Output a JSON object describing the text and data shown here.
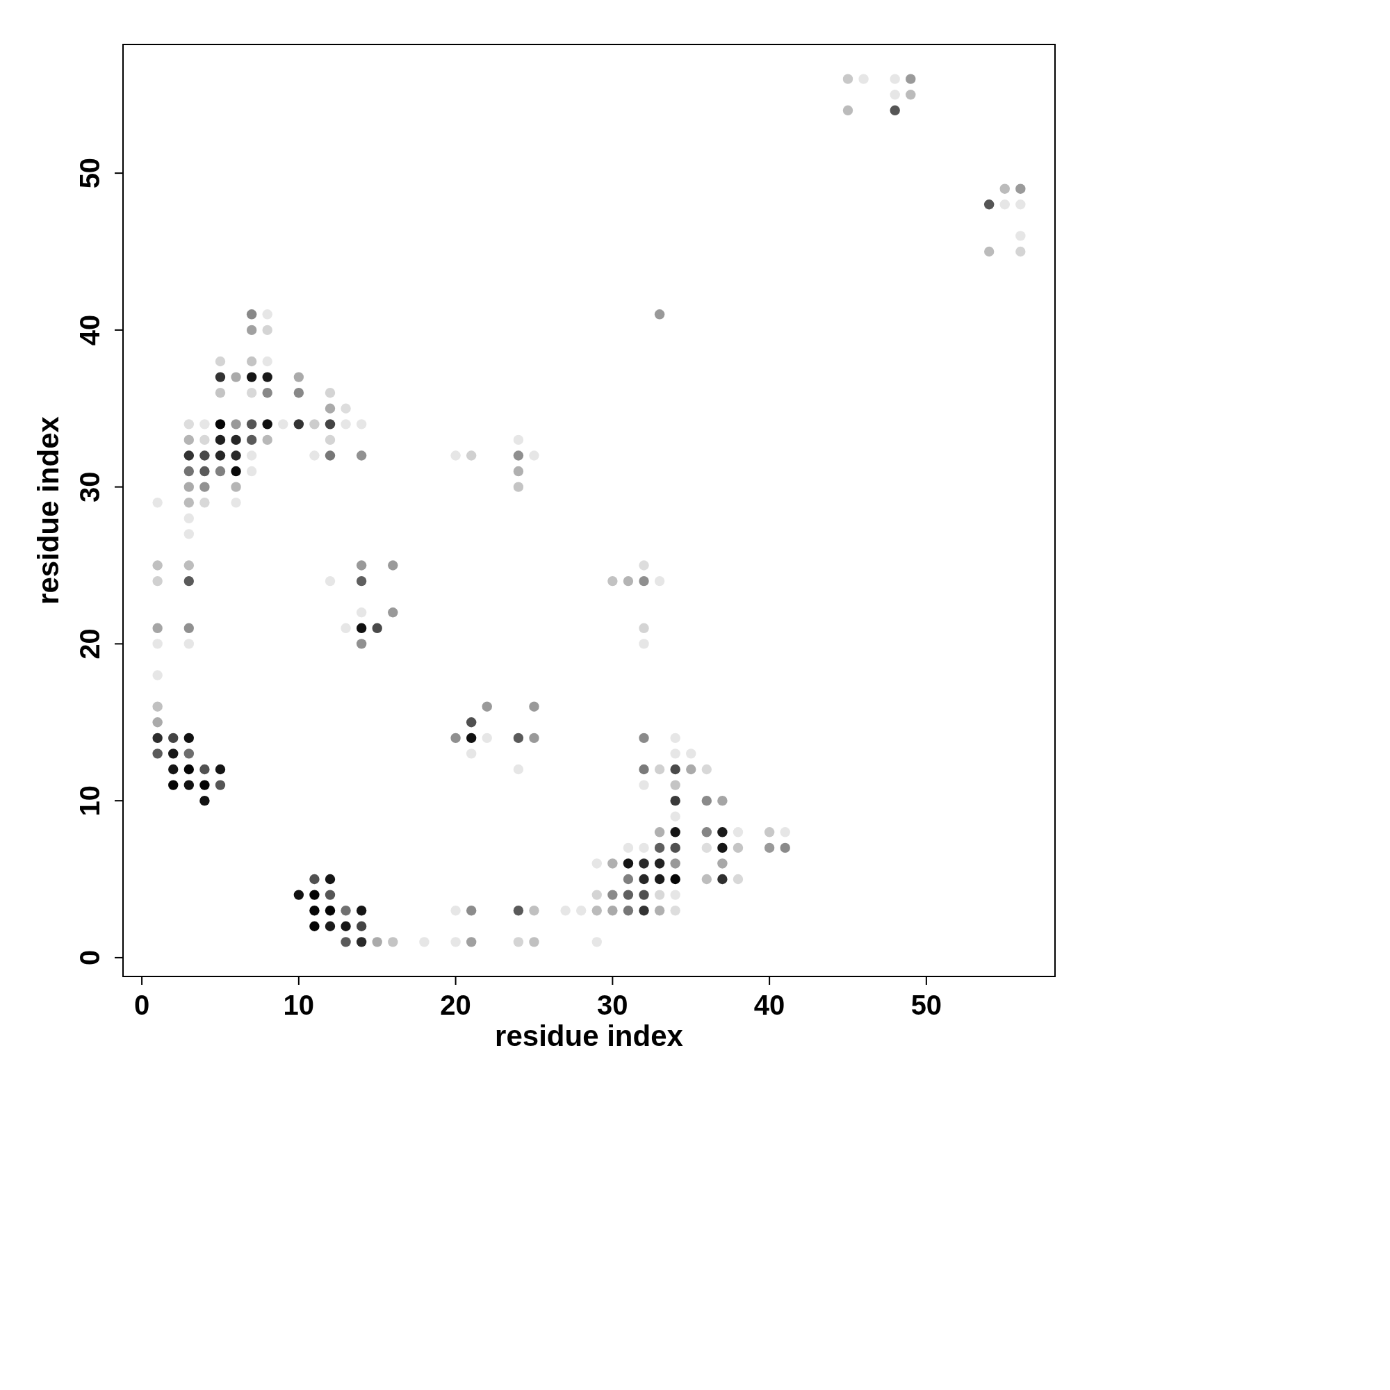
{
  "chart_data": {
    "type": "scatter",
    "xlabel": "residue index",
    "ylabel": "residue index",
    "marker": "circle",
    "xlim": [
      -1.2,
      58.2
    ],
    "ylim": [
      -1.2,
      58.2
    ],
    "xticks": [
      0,
      10,
      20,
      30,
      40,
      50
    ],
    "yticks": [
      0,
      10,
      20,
      30,
      40,
      50
    ],
    "series": [
      {
        "x": [
          45,
          46,
          48,
          49
        ],
        "values": [
          56,
          56,
          56,
          56
        ],
        "colors": [
          "#c8c8c8",
          "#e6e6e6",
          "#e6e6e6",
          "#9a9a9a"
        ]
      },
      {
        "x": [
          48,
          49
        ],
        "values": [
          55,
          55
        ],
        "colors": [
          "#e6e6e6",
          "#bbbbbb"
        ]
      },
      {
        "x": [
          45,
          48
        ],
        "values": [
          54,
          54
        ],
        "colors": [
          "#bbbbbb",
          "#555555"
        ]
      },
      {
        "x": [
          55,
          56
        ],
        "values": [
          49,
          49
        ],
        "colors": [
          "#bbbbbb",
          "#9a9a9a"
        ]
      },
      {
        "x": [
          54,
          55,
          56
        ],
        "values": [
          48,
          48,
          48
        ],
        "colors": [
          "#555555",
          "#e6e6e6",
          "#e6e6e6"
        ]
      },
      {
        "x": [
          56
        ],
        "values": [
          46
        ],
        "colors": [
          "#e6e6e6"
        ]
      },
      {
        "x": [
          54,
          56
        ],
        "values": [
          45,
          45
        ],
        "colors": [
          "#bbbbbb",
          "#d4d4d4"
        ]
      },
      {
        "x": [
          7,
          8,
          33
        ],
        "values": [
          41,
          41,
          41
        ],
        "colors": [
          "#888888",
          "#e6e6e6",
          "#999999"
        ]
      },
      {
        "x": [
          7,
          8
        ],
        "values": [
          40,
          40
        ],
        "colors": [
          "#a0a0a0",
          "#d4d4d4"
        ]
      },
      {
        "x": [
          5,
          7,
          8
        ],
        "values": [
          38,
          38,
          38
        ],
        "colors": [
          "#d4d4d4",
          "#c4c4c4",
          "#e6e6e6"
        ]
      },
      {
        "x": [
          5,
          6,
          7,
          8,
          10
        ],
        "values": [
          37,
          37,
          37,
          37,
          37
        ],
        "colors": [
          "#333333",
          "#aaaaaa",
          "#151515",
          "#1a1a1a",
          "#aaaaaa"
        ]
      },
      {
        "x": [
          5,
          7,
          8,
          10,
          12
        ],
        "values": [
          36,
          36,
          36,
          36,
          36
        ],
        "colors": [
          "#c4c4c4",
          "#d8d8d8",
          "#888888",
          "#888888",
          "#d4d4d4"
        ]
      },
      {
        "x": [
          12,
          13
        ],
        "values": [
          35,
          35
        ],
        "colors": [
          "#aaaaaa",
          "#dddddd"
        ]
      },
      {
        "x": [
          3,
          4,
          5,
          6,
          7,
          8,
          9,
          10,
          11,
          12,
          13,
          14
        ],
        "values": [
          34,
          34,
          34,
          34,
          34,
          34,
          34,
          34,
          34,
          34,
          34,
          34
        ],
        "colors": [
          "#dddddd",
          "#e6e6e6",
          "#050505",
          "#999999",
          "#555555",
          "#111111",
          "#e6e6e6",
          "#333333",
          "#cccccc",
          "#444444",
          "#e6e6e6",
          "#e6e6e6"
        ]
      },
      {
        "x": [
          3,
          4,
          5,
          6,
          7,
          8,
          12,
          24
        ],
        "values": [
          33,
          33,
          33,
          33,
          33,
          33,
          33,
          33
        ],
        "colors": [
          "#b4b4b4",
          "#d8d8d8",
          "#1f1f1f",
          "#262626",
          "#5a5a5a",
          "#b8b8b8",
          "#d4d4d4",
          "#e6e6e6"
        ]
      },
      {
        "x": [
          3,
          4,
          5,
          6,
          7,
          11,
          12,
          14,
          20,
          21,
          24,
          25
        ],
        "values": [
          32,
          32,
          32,
          32,
          32,
          32,
          32,
          32,
          32,
          32,
          32,
          32
        ],
        "colors": [
          "#333333",
          "#4a4a4a",
          "#262626",
          "#2a2a2a",
          "#e6e6e6",
          "#e6e6e6",
          "#777777",
          "#919191",
          "#e6e6e6",
          "#d0d0d0",
          "#8f8f8f",
          "#e6e6e6"
        ]
      },
      {
        "x": [
          3,
          4,
          5,
          6,
          7,
          24
        ],
        "values": [
          31,
          31,
          31,
          31,
          31,
          31
        ],
        "colors": [
          "#737373",
          "#5a5a5a",
          "#808080",
          "#0a0a0a",
          "#e6e6e6",
          "#b0b0b0"
        ]
      },
      {
        "x": [
          3,
          4,
          6,
          24
        ],
        "values": [
          30,
          30,
          30,
          30
        ],
        "colors": [
          "#aaaaaa",
          "#919191",
          "#b5b5b5",
          "#c4c4c4"
        ]
      },
      {
        "x": [
          1,
          3,
          4,
          6
        ],
        "values": [
          29,
          29,
          29,
          29
        ],
        "colors": [
          "#e6e6e6",
          "#bbbbbb",
          "#d8d8d8",
          "#e6e6e6"
        ]
      },
      {
        "x": [
          3
        ],
        "values": [
          28
        ],
        "colors": [
          "#e6e6e6"
        ]
      },
      {
        "x": [
          3
        ],
        "values": [
          27
        ],
        "colors": [
          "#e6e6e6"
        ]
      },
      {
        "x": [
          1,
          3,
          14,
          16,
          32
        ],
        "values": [
          25,
          25,
          25,
          25,
          25
        ],
        "colors": [
          "#c0c0c0",
          "#bdbdbd",
          "#999999",
          "#999999",
          "#dddddd"
        ]
      },
      {
        "x": [
          1,
          3,
          12,
          14,
          30,
          31,
          32,
          33
        ],
        "values": [
          24,
          24,
          24,
          24,
          24,
          24,
          24,
          24
        ],
        "colors": [
          "#d0d0d0",
          "#5a5a5a",
          "#e6e6e6",
          "#5f5f5f",
          "#c2c2c2",
          "#b4b4b4",
          "#8f8f8f",
          "#e6e6e6"
        ]
      },
      {
        "x": [
          14,
          16
        ],
        "values": [
          22,
          22
        ],
        "colors": [
          "#e6e6e6",
          "#999999"
        ]
      },
      {
        "x": [
          1,
          3,
          13,
          14,
          15,
          32
        ],
        "values": [
          21,
          21,
          21,
          21,
          21,
          21
        ],
        "colors": [
          "#a5a5a5",
          "#909090",
          "#e6e6e6",
          "#111111",
          "#4a4a4a",
          "#d4d4d4"
        ]
      },
      {
        "x": [
          1,
          3,
          14,
          32
        ],
        "values": [
          20,
          20,
          20,
          20
        ],
        "colors": [
          "#e6e6e6",
          "#e6e6e6",
          "#909090",
          "#e6e6e6"
        ]
      },
      {
        "x": [
          1
        ],
        "values": [
          18
        ],
        "colors": [
          "#e6e6e6"
        ]
      },
      {
        "x": [
          1,
          22,
          25
        ],
        "values": [
          16,
          16,
          16
        ],
        "colors": [
          "#c0c0c0",
          "#999999",
          "#999999"
        ]
      },
      {
        "x": [
          1,
          21
        ],
        "values": [
          15,
          15
        ],
        "colors": [
          "#aaaaaa",
          "#505050"
        ]
      },
      {
        "x": [
          1,
          2,
          3,
          20,
          21,
          22,
          24,
          25,
          32,
          34
        ],
        "values": [
          14,
          14,
          14,
          14,
          14,
          14,
          14,
          14,
          14,
          14
        ],
        "colors": [
          "#2d2d2d",
          "#444444",
          "#111111",
          "#8f8f8f",
          "#111111",
          "#e6e6e6",
          "#5a5a5a",
          "#999999",
          "#8a8a8a",
          "#e6e6e6"
        ]
      },
      {
        "x": [
          1,
          2,
          3,
          21,
          34,
          35
        ],
        "values": [
          13,
          13,
          13,
          13,
          13,
          13
        ],
        "colors": [
          "#5a5a5a",
          "#171717",
          "#6d6d6d",
          "#e6e6e6",
          "#e6e6e6",
          "#e6e6e6"
        ]
      },
      {
        "x": [
          2,
          3,
          4,
          5,
          24,
          32,
          33,
          34,
          35,
          36
        ],
        "values": [
          12,
          12,
          12,
          12,
          12,
          12,
          12,
          12,
          12,
          12
        ],
        "colors": [
          "#151515",
          "#050505",
          "#515151",
          "#151515",
          "#e6e6e6",
          "#7a7a7a",
          "#d0d0d0",
          "#4a4a4a",
          "#aaaaaa",
          "#d8d8d8"
        ]
      },
      {
        "x": [
          2,
          3,
          4,
          5,
          32,
          34
        ],
        "values": [
          11,
          11,
          11,
          11,
          11,
          11
        ],
        "colors": [
          "#050505",
          "#111111",
          "#050505",
          "#555555",
          "#e6e6e6",
          "#c4c4c4"
        ]
      },
      {
        "x": [
          4,
          34,
          36,
          37
        ],
        "values": [
          10,
          10,
          10,
          10
        ],
        "colors": [
          "#111111",
          "#3a3a3a",
          "#8a8a8a",
          "#a5a5a5"
        ]
      },
      {
        "x": [
          34
        ],
        "values": [
          9
        ],
        "colors": [
          "#e6e6e6"
        ]
      },
      {
        "x": [
          33,
          34,
          36,
          37,
          38,
          40,
          41
        ],
        "values": [
          8,
          8,
          8,
          8,
          8,
          8,
          8
        ],
        "colors": [
          "#b0b0b0",
          "#151515",
          "#858585",
          "#1a1a1a",
          "#e6e6e6",
          "#c8c8c8",
          "#e6e6e6"
        ]
      },
      {
        "x": [
          31,
          32,
          33,
          34,
          36,
          37,
          38,
          40,
          41
        ],
        "values": [
          7,
          7,
          7,
          7,
          7,
          7,
          7,
          7,
          7
        ],
        "colors": [
          "#e6e6e6",
          "#e6e6e6",
          "#5f5f5f",
          "#505050",
          "#dddddd",
          "#151515",
          "#c4c4c4",
          "#999999",
          "#8a8a8a"
        ]
      },
      {
        "x": [
          29,
          30,
          31,
          32,
          33,
          34,
          37
        ],
        "values": [
          6,
          6,
          6,
          6,
          6,
          6,
          6
        ],
        "colors": [
          "#e6e6e6",
          "#b0b0b0",
          "#151515",
          "#2a2a2a",
          "#222222",
          "#999999",
          "#a8a8a8"
        ]
      },
      {
        "x": [
          11,
          12,
          31,
          32,
          33,
          34,
          36,
          37,
          38
        ],
        "values": [
          5,
          5,
          5,
          5,
          5,
          5,
          5,
          5,
          5
        ],
        "colors": [
          "#505050",
          "#151515",
          "#808080",
          "#262626",
          "#1a1a1a",
          "#050505",
          "#bdbdbd",
          "#2f2f2f",
          "#d8d8d8"
        ]
      },
      {
        "x": [
          10,
          11,
          12,
          29,
          30,
          31,
          32,
          33,
          34
        ],
        "values": [
          4,
          4,
          4,
          4,
          4,
          4,
          4,
          4,
          4
        ],
        "colors": [
          "#111111",
          "#050505",
          "#555555",
          "#d4d4d4",
          "#8a8a8a",
          "#5f5f5f",
          "#505050",
          "#d8d8d8",
          "#e6e6e6"
        ]
      },
      {
        "x": [
          11,
          12,
          13,
          14,
          20,
          21,
          24,
          25,
          27,
          28,
          29,
          30,
          31,
          32,
          33,
          34
        ],
        "values": [
          3,
          3,
          3,
          3,
          3,
          3,
          3,
          3,
          3,
          3,
          3,
          3,
          3,
          3,
          3,
          3
        ],
        "colors": [
          "#050505",
          "#050505",
          "#707070",
          "#151515",
          "#e6e6e6",
          "#8c8c8c",
          "#5a5a5a",
          "#c0c0c0",
          "#e6e6e6",
          "#e6e6e6",
          "#bbbbbb",
          "#aaaaaa",
          "#777777",
          "#333333",
          "#b0b0b0",
          "#dddddd"
        ]
      },
      {
        "x": [
          11,
          12,
          13,
          14
        ],
        "values": [
          2,
          2,
          2,
          2
        ],
        "colors": [
          "#050505",
          "#1a1a1a",
          "#151515",
          "#444444"
        ]
      },
      {
        "x": [
          13,
          14,
          15,
          16,
          18,
          20,
          21,
          24,
          25,
          29
        ],
        "values": [
          1,
          1,
          1,
          1,
          1,
          1,
          1,
          1,
          1,
          1
        ],
        "colors": [
          "#5a5a5a",
          "#2a2a2a",
          "#aaaaaa",
          "#c4c4c4",
          "#e6e6e6",
          "#e6e6e6",
          "#a0a0a0",
          "#d4d4d4",
          "#c0c0c0",
          "#e6e6e6"
        ]
      }
    ]
  }
}
